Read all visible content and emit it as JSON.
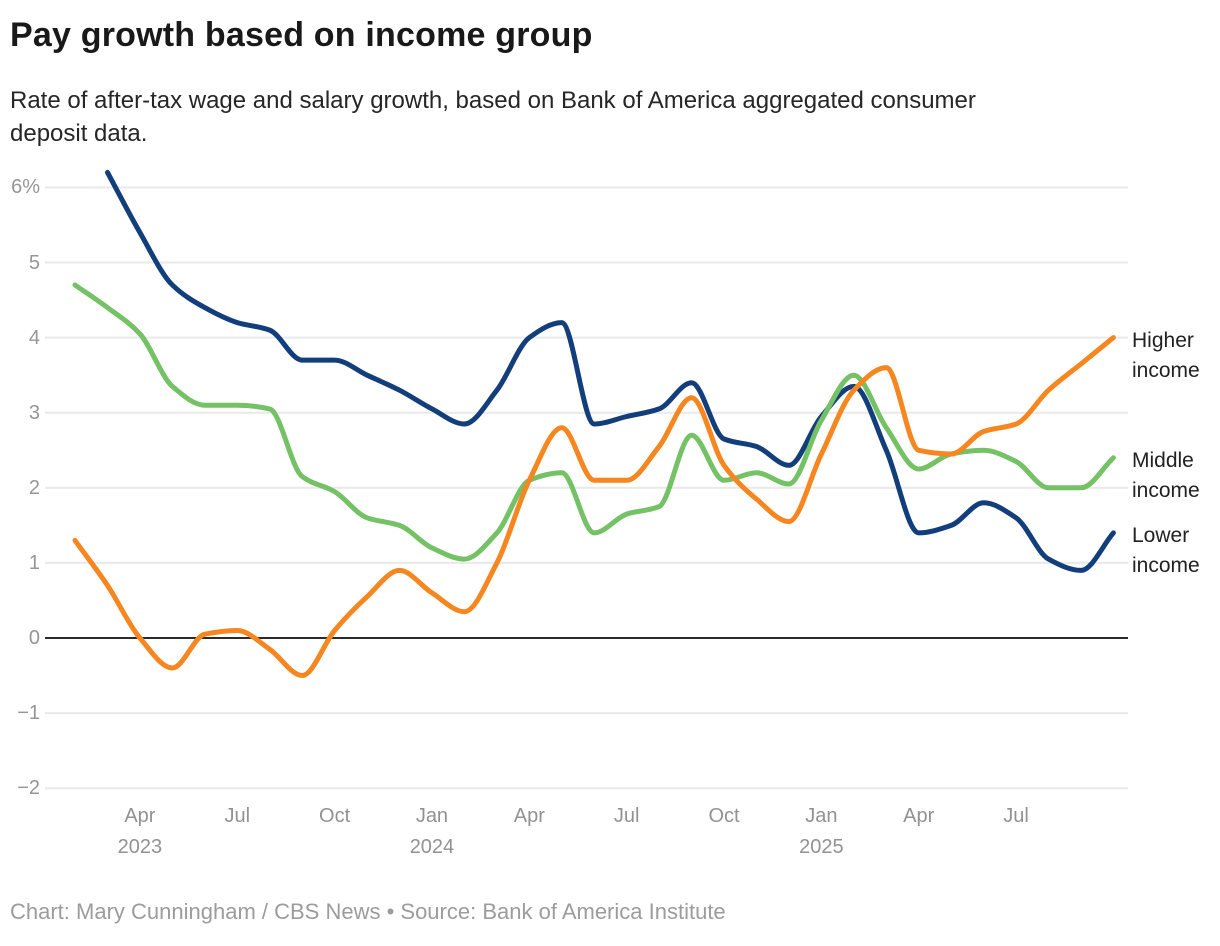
{
  "title": "Pay growth based on income group",
  "subtitle": "Rate of after-tax wage and salary growth, based on Bank of America aggregated consumer deposit data.",
  "footer": "Chart: Mary Cunningham / CBS News • Source: Bank of America Institute",
  "colors": {
    "higher_income": "#f6861f",
    "middle_income": "#74c166",
    "lower_income": "#123e7b",
    "gridline": "#e9e9e9",
    "zero_line": "#2b2b2b",
    "axis_text": "#949494",
    "title_text": "#191919",
    "footer_text": "#9c9c9c"
  },
  "chart_data": {
    "type": "line",
    "x_unit": "month",
    "x_start": "Feb 2023",
    "x_end": "Oct 2025",
    "grid": "horizontal",
    "zero_line": true,
    "legend_position": "right-end-labels",
    "ylim": [
      -2.3,
      6.5
    ],
    "y_ticks": [
      {
        "value": 6,
        "label": "6%"
      },
      {
        "value": 5,
        "label": "5"
      },
      {
        "value": 4,
        "label": "4"
      },
      {
        "value": 3,
        "label": "3"
      },
      {
        "value": 2,
        "label": "2"
      },
      {
        "value": 1,
        "label": "1"
      },
      {
        "value": 0,
        "label": "0"
      },
      {
        "value": -1,
        "label": "−1"
      },
      {
        "value": -2,
        "label": "−2"
      }
    ],
    "x_ticks": [
      {
        "index": 2,
        "month": "Apr",
        "year": "2023"
      },
      {
        "index": 5,
        "month": "Jul",
        "year": ""
      },
      {
        "index": 8,
        "month": "Oct",
        "year": ""
      },
      {
        "index": 11,
        "month": "Jan",
        "year": "2024"
      },
      {
        "index": 14,
        "month": "Apr",
        "year": ""
      },
      {
        "index": 17,
        "month": "Jul",
        "year": ""
      },
      {
        "index": 20,
        "month": "Oct",
        "year": ""
      },
      {
        "index": 23,
        "month": "Jan",
        "year": "2025"
      },
      {
        "index": 26,
        "month": "Apr",
        "year": ""
      },
      {
        "index": 29,
        "month": "Jul",
        "year": ""
      }
    ],
    "series": [
      {
        "name": "Higher income",
        "label_lines": [
          "Higher",
          "income"
        ],
        "color": "#f6861f",
        "values": [
          1.3,
          0.7,
          0.0,
          -0.4,
          0.05,
          0.1,
          -0.15,
          -0.5,
          0.1,
          0.55,
          0.9,
          0.6,
          0.35,
          1.0,
          2.1,
          2.8,
          2.1,
          2.1,
          2.55,
          3.2,
          2.3,
          1.85,
          1.55,
          2.45,
          3.3,
          3.6,
          2.5,
          2.45,
          2.75,
          2.85,
          3.3,
          3.65,
          4.0
        ]
      },
      {
        "name": "Middle income",
        "label_lines": [
          "Middle",
          "income"
        ],
        "color": "#74c166",
        "values": [
          4.7,
          4.4,
          4.05,
          3.35,
          3.1,
          3.1,
          3.05,
          2.15,
          1.95,
          1.6,
          1.5,
          1.2,
          1.05,
          1.4,
          2.1,
          2.2,
          1.4,
          1.65,
          1.75,
          2.7,
          2.1,
          2.2,
          2.05,
          2.9,
          3.5,
          2.8,
          2.25,
          2.45,
          2.5,
          2.35,
          2.0,
          2.0,
          2.4
        ]
      },
      {
        "name": "Lower income",
        "label_lines": [
          "Lower",
          "income"
        ],
        "color": "#123e7b",
        "values": [
          null,
          6.2,
          5.4,
          4.7,
          4.4,
          4.2,
          4.1,
          3.7,
          3.7,
          3.5,
          3.3,
          3.05,
          2.85,
          3.3,
          4.0,
          4.2,
          2.85,
          2.95,
          3.05,
          3.4,
          2.65,
          2.55,
          2.3,
          2.95,
          3.35,
          2.5,
          1.4,
          1.5,
          1.8,
          1.6,
          1.05,
          0.9,
          1.4
        ]
      }
    ]
  }
}
